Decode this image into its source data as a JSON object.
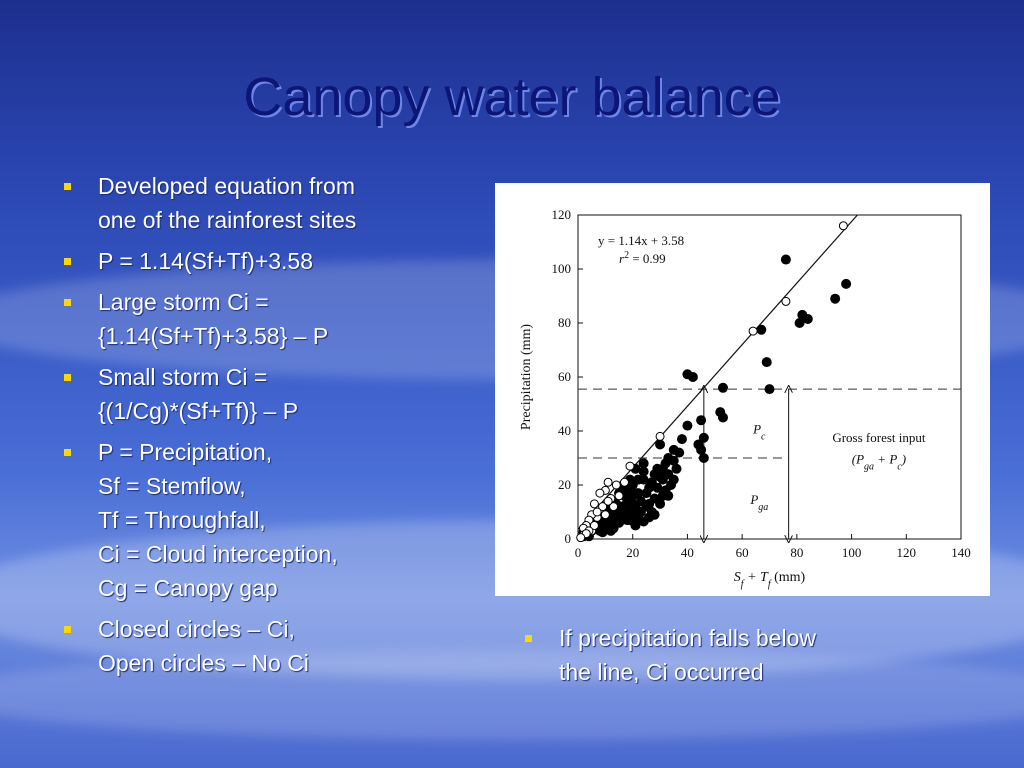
{
  "slide": {
    "title": "Canopy water balance",
    "left_bullets": [
      {
        "lines": [
          "Developed equation from",
          "one of the rainforest sites"
        ]
      },
      {
        "lines": [
          "P = 1.14(Sf+Tf)+3.58"
        ]
      },
      {
        "lines": [
          "Large storm Ci =",
          "{1.14(Sf+Tf)+3.58} – P"
        ]
      },
      {
        "lines": [
          "Small storm Ci =",
          "{(1/Cg)*(Sf+Tf)} – P"
        ]
      },
      {
        "lines": [
          "P = Precipitation,",
          "Sf = Stemflow,",
          "Tf = Throughfall,",
          "Ci = Cloud interception,",
          "Cg = Canopy gap"
        ]
      },
      {
        "lines": [
          "Closed circles – Ci,",
          "Open circles – No Ci"
        ]
      }
    ],
    "right_bullets": [
      {
        "lines": [
          "If precipitation falls below",
          "the line, Ci occurred"
        ]
      }
    ],
    "bullet_color": "#ffd700",
    "title_color": "#0b1677"
  },
  "chart_data": {
    "type": "scatter",
    "xlabel_main": "S",
    "xlabel_sub1": "f",
    "xlabel_plus": " + T",
    "xlabel_sub2": "f",
    "xlabel_unit": " (mm)",
    "ylabel": "Precipitation (mm)",
    "xlim": [
      0,
      140
    ],
    "ylim": [
      0,
      120
    ],
    "xticks": [
      0,
      20,
      40,
      60,
      80,
      100,
      120,
      140
    ],
    "yticks": [
      0,
      20,
      40,
      60,
      80,
      100,
      120
    ],
    "grid": false,
    "regression": {
      "slope": 1.14,
      "intercept": 3.58,
      "eq_text": "y = 1.14x + 3.58",
      "r2_text": "r",
      "r2_sup": "2",
      "r2_value": " = 0.99"
    },
    "annotations": {
      "pc_main": "P",
      "pc_sub": "c",
      "pga_main": "P",
      "pga_sub": "ga",
      "gross_line1": "Gross forest input",
      "gross_open": "(P",
      "gross_sub1": "ga",
      "gross_plus": " + P",
      "gross_sub2": "c",
      "gross_close": ")"
    },
    "reference_levels": {
      "upper_y": 55.5,
      "lower_y": 30,
      "x_left_arrow": 46,
      "x_right_arrow": 77
    },
    "series": [
      {
        "marker": "closed",
        "points": [
          [
            76,
            103.5
          ],
          [
            98,
            94.5
          ],
          [
            94,
            89
          ],
          [
            82,
            83
          ],
          [
            84,
            81.5
          ],
          [
            81,
            80
          ],
          [
            67,
            77.5
          ],
          [
            40,
            61
          ],
          [
            42,
            60
          ],
          [
            69,
            65.5
          ],
          [
            70,
            55.5
          ],
          [
            53,
            56
          ],
          [
            52,
            47
          ],
          [
            53,
            45
          ],
          [
            45,
            44
          ],
          [
            40,
            42
          ],
          [
            46,
            37.5
          ],
          [
            44,
            35
          ],
          [
            45,
            33
          ],
          [
            46,
            30
          ],
          [
            38,
            37
          ],
          [
            35,
            33
          ],
          [
            37,
            32
          ],
          [
            30,
            35
          ],
          [
            33,
            30
          ],
          [
            35,
            29
          ],
          [
            32,
            28
          ],
          [
            31,
            26
          ],
          [
            29,
            26
          ],
          [
            33,
            24
          ],
          [
            31,
            22
          ],
          [
            28,
            24
          ],
          [
            27,
            21
          ],
          [
            26,
            19
          ],
          [
            25,
            17
          ],
          [
            24,
            22
          ],
          [
            24,
            25
          ],
          [
            22,
            22
          ],
          [
            20,
            20
          ],
          [
            20,
            16
          ],
          [
            19,
            18
          ],
          [
            18,
            14
          ],
          [
            18,
            10
          ],
          [
            17,
            16
          ],
          [
            16,
            12
          ],
          [
            16,
            9
          ],
          [
            14,
            13
          ],
          [
            15,
            11
          ],
          [
            13,
            9
          ],
          [
            14,
            7
          ],
          [
            12,
            8
          ],
          [
            11,
            6
          ],
          [
            10,
            7
          ],
          [
            10,
            5
          ],
          [
            9,
            8
          ],
          [
            8,
            5
          ],
          [
            8,
            3
          ],
          [
            7,
            4
          ],
          [
            6,
            4
          ],
          [
            5,
            3
          ],
          [
            4,
            2
          ],
          [
            4,
            1
          ],
          [
            3,
            3
          ],
          [
            2,
            1
          ],
          [
            27,
            10
          ],
          [
            25,
            12
          ],
          [
            23,
            10
          ],
          [
            23,
            14
          ],
          [
            21,
            12
          ],
          [
            22,
            8
          ],
          [
            20,
            9
          ],
          [
            19,
            7
          ],
          [
            30,
            13
          ],
          [
            28,
            15
          ],
          [
            31,
            16
          ],
          [
            26,
            13
          ],
          [
            32,
            18
          ],
          [
            29,
            19
          ],
          [
            34,
            20
          ],
          [
            24,
            28
          ],
          [
            21,
            26
          ],
          [
            19,
            22
          ],
          [
            17,
            19
          ],
          [
            15,
            17
          ],
          [
            13,
            14
          ],
          [
            12,
            11
          ],
          [
            11,
            10
          ],
          [
            10,
            12
          ],
          [
            9,
            9
          ],
          [
            6,
            6
          ],
          [
            5,
            5
          ],
          [
            3,
            1.5
          ],
          [
            2,
            2.5
          ],
          [
            26,
            8
          ],
          [
            24,
            6.5
          ],
          [
            21,
            5
          ],
          [
            18,
            7
          ],
          [
            15,
            6
          ],
          [
            13,
            4
          ],
          [
            12,
            3
          ],
          [
            9,
            2.5
          ],
          [
            30,
            23
          ],
          [
            28,
            9
          ],
          [
            33,
            16
          ],
          [
            22,
            17
          ],
          [
            20,
            13
          ],
          [
            36,
            26
          ],
          [
            35,
            22
          ],
          [
            18,
            12
          ],
          [
            17,
            9
          ],
          [
            16,
            7
          ]
        ]
      },
      {
        "marker": "open",
        "points": [
          [
            97,
            116
          ],
          [
            76,
            88
          ],
          [
            64,
            77
          ],
          [
            30,
            38
          ],
          [
            19,
            27
          ],
          [
            11,
            21
          ],
          [
            10,
            18
          ],
          [
            14,
            20
          ],
          [
            8,
            17
          ],
          [
            6,
            13
          ],
          [
            8,
            11
          ],
          [
            10,
            9
          ],
          [
            7,
            8
          ],
          [
            5,
            9
          ],
          [
            4,
            7
          ],
          [
            3,
            5
          ],
          [
            2,
            4
          ],
          [
            2,
            1.5
          ],
          [
            5,
            3
          ],
          [
            6,
            5
          ],
          [
            4,
            3
          ],
          [
            3,
            2
          ],
          [
            13,
            12
          ],
          [
            12,
            15
          ],
          [
            15,
            16
          ],
          [
            17,
            21
          ],
          [
            9,
            12
          ],
          [
            7,
            10
          ],
          [
            1,
            0.5
          ],
          [
            11,
            14
          ]
        ]
      }
    ]
  }
}
